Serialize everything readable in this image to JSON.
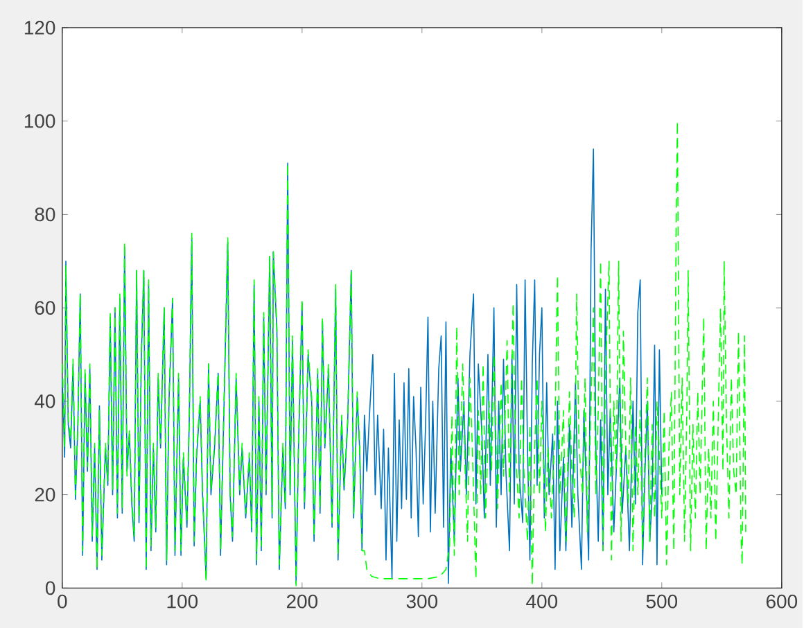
{
  "chart_data": {
    "type": "line",
    "xlim": [
      0,
      600
    ],
    "ylim": [
      0,
      120
    ],
    "xticks": [
      0,
      100,
      200,
      300,
      400,
      500,
      600
    ],
    "yticks": [
      0,
      20,
      40,
      60,
      80,
      100,
      120
    ],
    "series": [
      {
        "color": "#0072bd",
        "line_style": "solid",
        "x": [
          0,
          2,
          3,
          5,
          7,
          9,
          11,
          13,
          15,
          17,
          19,
          21,
          23,
          25,
          27,
          29,
          31,
          33,
          36,
          38,
          40,
          42,
          44,
          46,
          48,
          50,
          52,
          54,
          56,
          58,
          60,
          62,
          64,
          66,
          68,
          70,
          72,
          74,
          76,
          78,
          80,
          82,
          85,
          87,
          89,
          92,
          94,
          97,
          99,
          101,
          104,
          106,
          108,
          110,
          112,
          115,
          117,
          120,
          122,
          124,
          127,
          130,
          132,
          135,
          138,
          140,
          142,
          145,
          148,
          150,
          153,
          156,
          158,
          160,
          162,
          164,
          166,
          168,
          170,
          173,
          175,
          176,
          179,
          181,
          184,
          186,
          188,
          190,
          192,
          195,
          197,
          200,
          202,
          205,
          208,
          210,
          213,
          215,
          217,
          219,
          222,
          225,
          228,
          230,
          233,
          235,
          238,
          241,
          243,
          246,
          248,
          250,
          252,
          254,
          256,
          259,
          261,
          263,
          266,
          268,
          270,
          272,
          275,
          277,
          279,
          281,
          283,
          285,
          287,
          289,
          291,
          293,
          295,
          297,
          299,
          301,
          303,
          305,
          307,
          309,
          311,
          314,
          316,
          318,
          320,
          322,
          324,
          327,
          330,
          332,
          335,
          337,
          340,
          343,
          345,
          347,
          350,
          352,
          355,
          357,
          360,
          362,
          364,
          366,
          368,
          370,
          373,
          375,
          377,
          379,
          381,
          384,
          386,
          388,
          390,
          392,
          394,
          396,
          398,
          400,
          402,
          404,
          406,
          409,
          411,
          413,
          415,
          418,
          420,
          423,
          425,
          428,
          430,
          433,
          435,
          437,
          439,
          441,
          443,
          445,
          447,
          449,
          451,
          453,
          455,
          457,
          460,
          462,
          465,
          467,
          470,
          473,
          476,
          478,
          480,
          482,
          484,
          486,
          488,
          490,
          492,
          494,
          496,
          498,
          500
        ],
        "values": [
          45,
          28,
          70,
          35,
          30,
          48,
          19,
          35,
          63,
          7,
          46,
          25,
          47,
          10,
          30,
          4,
          39,
          6,
          30,
          22,
          58,
          20,
          60,
          15,
          62,
          16,
          73,
          25,
          33,
          18,
          10,
          68,
          14,
          50,
          68,
          4,
          65,
          8,
          30,
          12,
          45,
          30,
          60,
          5,
          40,
          62,
          7,
          45,
          7,
          28,
          13,
          37,
          75,
          9,
          28,
          40,
          20,
          2,
          48,
          20,
          30,
          46,
          7,
          40,
          74,
          20,
          10,
          45,
          20,
          30,
          15,
          28,
          12,
          65,
          5,
          40,
          8,
          58,
          20,
          71,
          15,
          72,
          55,
          4,
          30,
          17,
          91,
          20,
          53,
          1,
          30,
          61,
          17,
          50,
          40,
          10,
          46,
          16,
          57,
          30,
          47,
          13,
          64,
          6,
          36,
          21,
          35,
          68,
          15,
          41,
          30,
          8,
          37,
          25,
          36,
          50,
          20,
          37,
          17,
          34,
          6,
          30,
          2,
          46,
          10,
          36,
          17,
          44,
          19,
          47,
          15,
          41,
          30,
          11,
          43,
          18,
          35,
          58,
          12,
          40,
          16,
          47,
          54,
          13,
          57,
          1,
          30,
          10,
          45,
          25,
          40,
          20,
          50,
          63,
          18,
          48,
          33,
          15,
          50,
          22,
          60,
          13,
          40,
          20,
          49,
          25,
          8,
          50,
          18,
          65,
          25,
          14,
          66,
          30,
          6,
          48,
          66,
          22,
          50,
          60,
          15,
          44,
          20,
          33,
          4,
          40,
          8,
          28,
          8,
          35,
          13,
          44,
          20,
          4,
          38,
          22,
          6,
          72,
          94,
          30,
          10,
          36,
          8,
          64,
          20,
          38,
          12,
          25,
          45,
          16,
          30,
          8,
          40,
          18,
          59,
          66,
          5,
          25,
          40,
          10,
          20,
          52,
          5,
          51,
          20
        ]
      },
      {
        "color": "#00ff00",
        "line_style": "dashed",
        "x": [
          0,
          2,
          3,
          5,
          7,
          9,
          11,
          13,
          15,
          17,
          19,
          21,
          23,
          25,
          27,
          29,
          31,
          33,
          36,
          38,
          40,
          42,
          44,
          46,
          48,
          50,
          52,
          54,
          56,
          58,
          60,
          62,
          64,
          66,
          68,
          70,
          72,
          74,
          76,
          78,
          80,
          82,
          85,
          87,
          89,
          92,
          94,
          97,
          99,
          101,
          104,
          106,
          108,
          110,
          112,
          115,
          117,
          120,
          122,
          124,
          127,
          130,
          132,
          135,
          138,
          140,
          142,
          145,
          148,
          150,
          153,
          156,
          158,
          160,
          162,
          164,
          166,
          168,
          170,
          173,
          175,
          176,
          179,
          181,
          184,
          186,
          188,
          190,
          192,
          195,
          197,
          200,
          202,
          205,
          208,
          210,
          213,
          215,
          217,
          219,
          222,
          225,
          228,
          230,
          233,
          235,
          238,
          241,
          243,
          246,
          248,
          250,
          252,
          254,
          258,
          265,
          280,
          295,
          305,
          315,
          320,
          323,
          325,
          327,
          329,
          331,
          334,
          336,
          338,
          340,
          342,
          345,
          347,
          349,
          351,
          353,
          356,
          358,
          360,
          363,
          366,
          368,
          371,
          373,
          376,
          378,
          381,
          383,
          385,
          388,
          390,
          392,
          394,
          396,
          398,
          400,
          403,
          405,
          408,
          411,
          413,
          415,
          418,
          420,
          423,
          425,
          427,
          429,
          431,
          434,
          436,
          438,
          440,
          443,
          445,
          447,
          449,
          451,
          453,
          456,
          458,
          460,
          462,
          464,
          466,
          468,
          470,
          472,
          474,
          476,
          478,
          480,
          482,
          484,
          486,
          488,
          490,
          492,
          494,
          496,
          498,
          500,
          502,
          504,
          506,
          508,
          510,
          512,
          513,
          515,
          517,
          519,
          521,
          522,
          524,
          526,
          528,
          530,
          532,
          535,
          537,
          539,
          541,
          543,
          545,
          547,
          549,
          551,
          552,
          554,
          556,
          558,
          560,
          562,
          564,
          566,
          567,
          569,
          570
        ],
        "values": [
          48,
          30,
          69,
          36,
          32,
          49,
          20,
          34,
          63,
          8,
          47,
          26,
          48,
          11,
          31,
          4,
          38,
          7,
          31,
          23,
          59,
          21,
          60,
          16,
          63,
          17,
          74,
          24,
          34,
          19,
          11,
          68,
          15,
          51,
          68,
          4,
          66,
          9,
          31,
          13,
          46,
          31,
          60,
          6,
          41,
          62,
          8,
          46,
          8,
          29,
          14,
          38,
          76,
          10,
          29,
          41,
          21,
          1.5,
          48,
          21,
          31,
          46,
          8,
          41,
          75,
          21,
          11,
          46,
          21,
          31,
          16,
          29,
          13,
          66,
          6,
          41,
          9,
          59,
          21,
          71,
          16,
          72,
          56,
          5,
          31,
          18,
          91,
          21,
          54,
          0.5,
          31,
          62,
          18,
          51,
          41,
          11,
          47,
          17,
          58,
          31,
          48,
          14,
          65,
          7,
          37,
          22,
          36,
          68,
          16,
          42,
          31,
          8,
          8,
          4,
          2.5,
          2,
          2,
          2,
          2,
          2.5,
          4,
          9,
          37,
          7,
          56,
          20,
          48,
          25,
          10,
          45,
          30,
          2,
          38,
          20,
          48,
          15,
          40,
          25,
          50,
          17,
          44,
          24,
          53,
          20,
          61,
          30,
          15,
          45,
          25,
          10,
          35,
          0.5,
          30,
          45,
          20,
          40,
          12,
          30,
          15,
          35,
          67,
          20,
          38,
          10,
          42,
          25,
          15,
          63,
          30,
          20,
          45,
          12,
          30,
          60,
          20,
          38,
          70,
          8,
          45,
          70,
          6,
          40,
          25,
          70,
          10,
          55,
          30,
          18,
          45,
          8,
          35,
          20,
          38,
          8,
          30,
          45,
          10,
          35,
          15,
          40,
          28,
          15,
          38,
          5,
          30,
          42,
          8,
          78,
          100,
          20,
          45,
          10,
          40,
          68,
          8,
          35,
          15,
          42,
          20,
          58,
          8,
          30,
          15,
          40,
          10,
          35,
          60,
          25,
          70,
          35,
          15,
          45,
          25,
          20,
          55,
          12,
          5,
          54,
          12
        ]
      }
    ]
  }
}
